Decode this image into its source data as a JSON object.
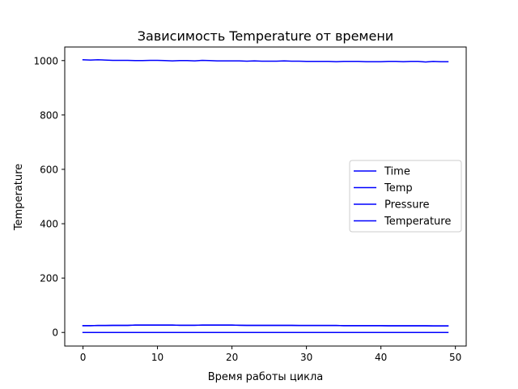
{
  "chart_data": {
    "type": "line",
    "title": "Зависимость Temperature от времени",
    "xlabel": "Время работы цикла",
    "ylabel": "Temperature",
    "xlim": [
      -2.45,
      51.45
    ],
    "ylim": [
      -50,
      1050
    ],
    "xticks": [
      0,
      10,
      20,
      30,
      40,
      50
    ],
    "yticks": [
      0,
      200,
      400,
      600,
      800,
      1000
    ],
    "grid": false,
    "legend_position": "center-right",
    "series": [
      {
        "name": "Time",
        "color": "#0000ff",
        "x": [
          0,
          1,
          2,
          3,
          4,
          5,
          6,
          7,
          8,
          9,
          10,
          11,
          12,
          13,
          14,
          15,
          16,
          17,
          18,
          19,
          20,
          21,
          22,
          23,
          24,
          25,
          26,
          27,
          28,
          29,
          30,
          31,
          32,
          33,
          34,
          35,
          36,
          37,
          38,
          39,
          40,
          41,
          42,
          43,
          44,
          45,
          46,
          47,
          48,
          49
        ],
        "y": [
          0,
          0,
          0,
          0,
          0,
          0,
          0,
          0,
          0,
          0,
          0,
          0,
          0,
          0,
          0,
          0,
          0,
          0,
          0,
          0,
          0,
          0,
          0,
          0,
          0,
          0,
          0,
          0,
          0,
          0,
          0,
          0,
          0,
          0,
          0,
          0,
          0,
          0,
          0,
          0,
          0,
          0,
          0,
          0,
          0,
          0,
          0,
          0,
          0,
          0
        ]
      },
      {
        "name": "Temp",
        "color": "#0000ff",
        "x": [
          0,
          1,
          2,
          3,
          4,
          5,
          6,
          7,
          8,
          9,
          10,
          11,
          12,
          13,
          14,
          15,
          16,
          17,
          18,
          19,
          20,
          21,
          22,
          23,
          24,
          25,
          26,
          27,
          28,
          29,
          30,
          31,
          32,
          33,
          34,
          35,
          36,
          37,
          38,
          39,
          40,
          41,
          42,
          43,
          44,
          45,
          46,
          47,
          48,
          49
        ],
        "y": [
          25,
          25,
          25.5,
          25.5,
          26,
          26,
          26,
          27,
          27,
          27,
          27,
          27,
          27,
          26.5,
          26.5,
          26.5,
          27,
          27,
          27,
          27,
          27,
          26.5,
          26,
          26,
          26,
          26,
          26,
          26,
          26,
          25.5,
          25.5,
          25.5,
          25.5,
          25.5,
          25.5,
          25,
          25,
          25,
          25,
          25,
          25,
          24.5,
          24.5,
          24.5,
          24.5,
          24.5,
          24.5,
          24,
          24,
          24
        ]
      },
      {
        "name": "Pressure",
        "color": "#0000ff",
        "x": [
          0,
          1,
          2,
          3,
          4,
          5,
          6,
          7,
          8,
          9,
          10,
          11,
          12,
          13,
          14,
          15,
          16,
          17,
          18,
          19,
          20,
          21,
          22,
          23,
          24,
          25,
          26,
          27,
          28,
          29,
          30,
          31,
          32,
          33,
          34,
          35,
          36,
          37,
          38,
          39,
          40,
          41,
          42,
          43,
          44,
          45,
          46,
          47,
          48,
          49
        ],
        "y": [
          1003,
          1002,
          1003,
          1002,
          1001,
          1001,
          1001,
          1000,
          1000,
          1001,
          1001,
          1000,
          999,
          1000,
          1000,
          999,
          1001,
          1000,
          999,
          999,
          999,
          999,
          998,
          999,
          998,
          998,
          998,
          999,
          998,
          998,
          997,
          997,
          997,
          997,
          996,
          997,
          997,
          997,
          996,
          996,
          996,
          997,
          997,
          996,
          997,
          997,
          995,
          997,
          996,
          996
        ]
      },
      {
        "name": "Temperature",
        "color": "#0000ff",
        "x": [
          0,
          1,
          2,
          3,
          4,
          5,
          6,
          7,
          8,
          9,
          10,
          11,
          12,
          13,
          14,
          15,
          16,
          17,
          18,
          19,
          20,
          21,
          22,
          23,
          24,
          25,
          26,
          27,
          28,
          29,
          30,
          31,
          32,
          33,
          34,
          35,
          36,
          37,
          38,
          39,
          40,
          41,
          42,
          43,
          44,
          45,
          46,
          47,
          48,
          49
        ],
        "y": [
          25,
          25,
          25.5,
          25.5,
          26,
          26,
          26,
          27,
          27,
          27,
          27,
          27,
          27,
          26.5,
          26.5,
          26.5,
          27,
          27,
          27,
          27,
          27,
          26.5,
          26,
          26,
          26,
          26,
          26,
          26,
          26,
          25.5,
          25.5,
          25.5,
          25.5,
          25.5,
          25.5,
          25,
          25,
          25,
          25,
          25,
          25,
          24.5,
          24.5,
          24.5,
          24.5,
          24.5,
          24.5,
          24,
          24,
          24
        ]
      }
    ]
  }
}
